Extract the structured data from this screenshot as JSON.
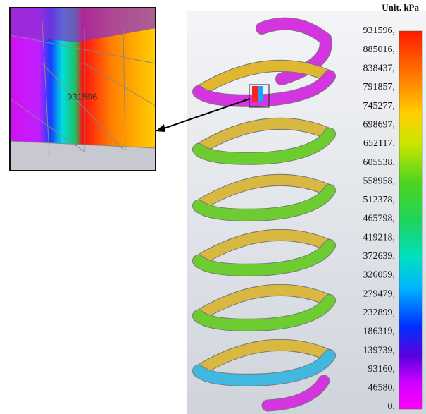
{
  "legend": {
    "unit": "Unit. kPa",
    "labels": [
      "931596,",
      "885016,",
      "838437,",
      "791857,",
      "745277,",
      "698697,",
      "652117,",
      "605538,",
      "558958,",
      "512378,",
      "465798,",
      "419218,",
      "372639,",
      "326059,",
      "279479,",
      "232899,",
      "186319,",
      "139739,",
      "93160,",
      "46580,",
      "0,"
    ]
  },
  "zoom": {
    "label": "931596."
  }
}
